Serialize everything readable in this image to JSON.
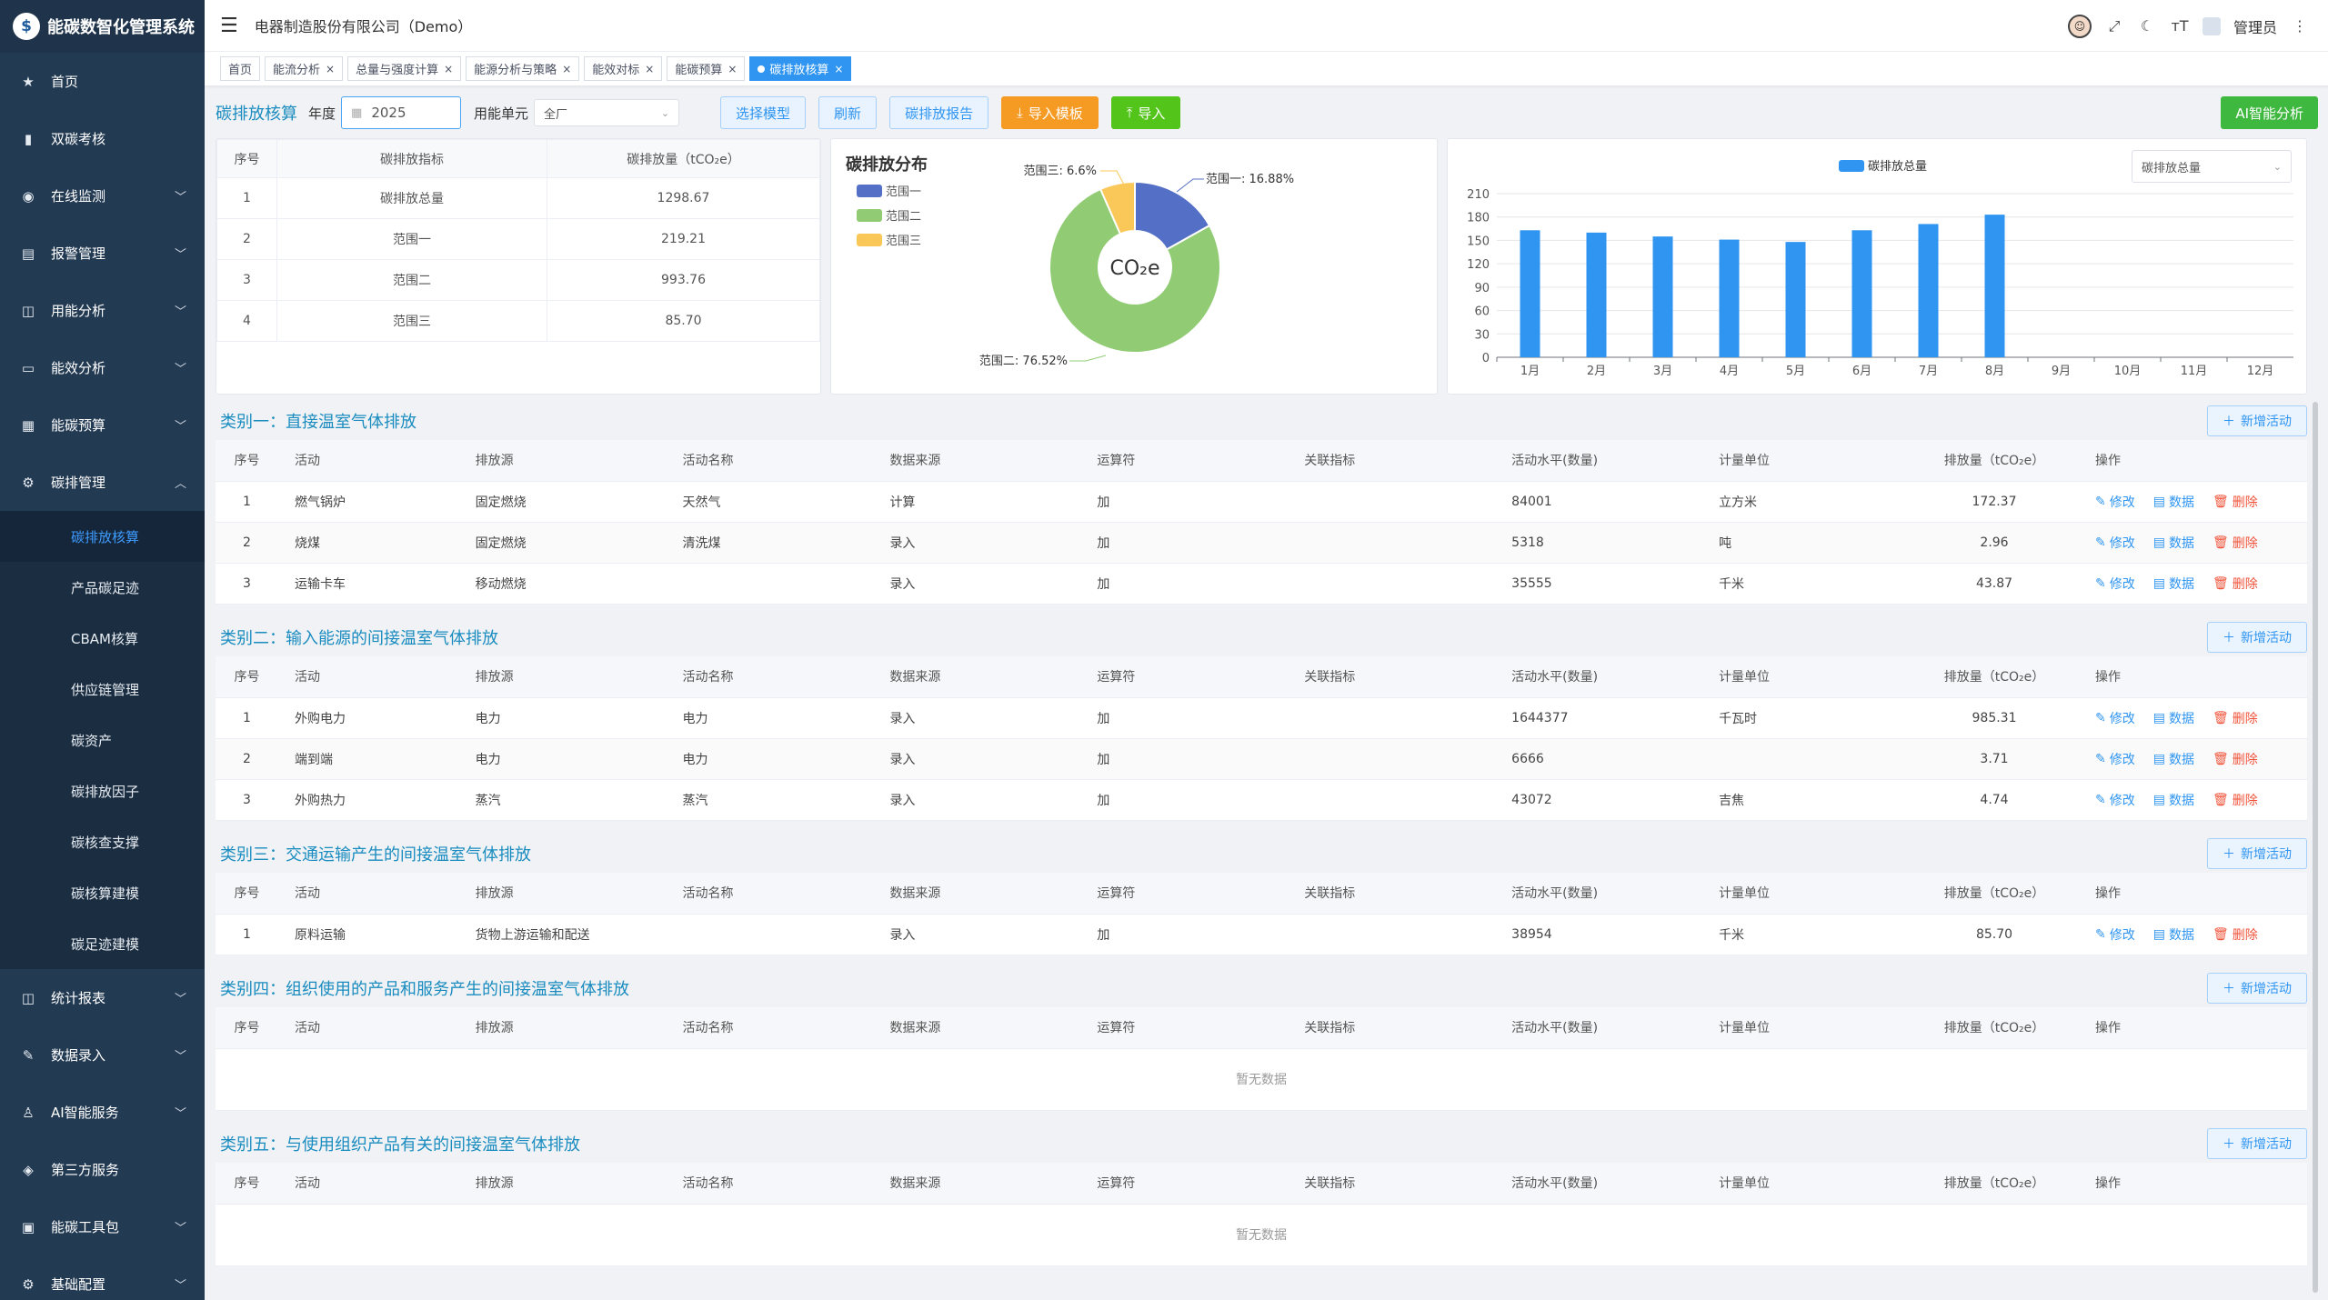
{
  "app": {
    "logo_text": "能碳数智化管理系统",
    "logo_mark": "$"
  },
  "header": {
    "company": "电器制造股份有限公司（Demo）",
    "user": "管理员"
  },
  "sidebar": {
    "items": [
      {
        "label": "首页",
        "icon": "★",
        "has_arrow": false
      },
      {
        "label": "双碳考核",
        "icon": "▮",
        "has_arrow": false
      },
      {
        "label": "在线监测",
        "icon": "◉",
        "has_arrow": true
      },
      {
        "label": "报警管理",
        "icon": "▤",
        "has_arrow": true
      },
      {
        "label": "用能分析",
        "icon": "◫",
        "has_arrow": true
      },
      {
        "label": "能效分析",
        "icon": "▭",
        "has_arrow": true
      },
      {
        "label": "能碳预算",
        "icon": "▦",
        "has_arrow": true
      },
      {
        "label": "碳排管理",
        "icon": "⚙",
        "has_arrow": true,
        "expanded": true
      }
    ],
    "sub_items": [
      "碳排放核算",
      "产品碳足迹",
      "CBAM核算",
      "供应链管理",
      "碳资产",
      "碳排放因子",
      "碳核查支撑",
      "碳核算建模",
      "碳足迹建模"
    ],
    "items_after": [
      {
        "label": "统计报表",
        "icon": "◫",
        "has_arrow": true
      },
      {
        "label": "数据录入",
        "icon": "✎",
        "has_arrow": true
      },
      {
        "label": "AI智能服务",
        "icon": "♙",
        "has_arrow": true
      },
      {
        "label": "第三方服务",
        "icon": "◈",
        "has_arrow": false
      },
      {
        "label": "能碳工具包",
        "icon": "▣",
        "has_arrow": true
      },
      {
        "label": "基础配置",
        "icon": "⚙",
        "has_arrow": true
      }
    ]
  },
  "tags": [
    {
      "label": "首页",
      "closable": false,
      "active": false
    },
    {
      "label": "能流分析",
      "closable": true,
      "active": false
    },
    {
      "label": "总量与强度计算",
      "closable": true,
      "active": false
    },
    {
      "label": "能源分析与策略",
      "closable": true,
      "active": false
    },
    {
      "label": "能效对标",
      "closable": true,
      "active": false
    },
    {
      "label": "能碳预算",
      "closable": true,
      "active": false
    },
    {
      "label": "碳排放核算",
      "closable": true,
      "active": true
    }
  ],
  "toolbar": {
    "title": "碳排放核算",
    "year_label": "年度",
    "year_value": "2025",
    "unit_label": "用能单元",
    "unit_value": "全厂",
    "btn_select_model": "选择模型",
    "btn_refresh": "刷新",
    "btn_report": "碳排放报告",
    "btn_import_template": "导入模板",
    "btn_import": "导入",
    "btn_ai": "AI智能分析"
  },
  "summary": {
    "headers": [
      "序号",
      "碳排放指标",
      "碳排放量（tCO₂e）"
    ],
    "rows": [
      [
        "1",
        "碳排放总量",
        "1298.67"
      ],
      [
        "2",
        "范围一",
        "219.21"
      ],
      [
        "3",
        "范围二",
        "993.76"
      ],
      [
        "4",
        "范围三",
        "85.70"
      ]
    ]
  },
  "pie": {
    "title": "碳排放分布",
    "center_text": "CO₂e",
    "labels": {
      "scope1": "范围一: 16.88%",
      "scope2": "范围二: 76.52%",
      "scope3": "范围三: 6.6%"
    }
  },
  "bar_panel": {
    "select_value": "碳排放总量"
  },
  "chart_data": [
    {
      "type": "pie",
      "title": "碳排放分布",
      "categories": [
        "范围一",
        "范围二",
        "范围三"
      ],
      "values": [
        16.88,
        76.52,
        6.6
      ],
      "colors": [
        "#5470c6",
        "#91cc75",
        "#fac858"
      ],
      "legend": "top-left",
      "donut": true
    },
    {
      "type": "bar",
      "categories": [
        "1月",
        "2月",
        "3月",
        "4月",
        "5月",
        "6月",
        "7月",
        "8月",
        "9月",
        "10月",
        "11月",
        "12月"
      ],
      "series": [
        {
          "name": "碳排放总量",
          "values": [
            163,
            160,
            155,
            151,
            148,
            163,
            171,
            183,
            null,
            null,
            null,
            null
          ],
          "color": "#2f95f0"
        }
      ],
      "ylim": [
        0,
        210
      ],
      "yticks": [
        0,
        30,
        60,
        90,
        120,
        150,
        180,
        210
      ],
      "legend": "top",
      "grid": true
    }
  ],
  "table_headers": [
    "序号",
    "活动",
    "排放源",
    "活动名称",
    "数据来源",
    "运算符",
    "关联指标",
    "活动水平(数量)",
    "计量单位",
    "排放量（tCO₂e）",
    "操作"
  ],
  "ops": {
    "edit": "修改",
    "data": "数据",
    "delete": "删除"
  },
  "add_label": "新增活动",
  "empty_text": "暂无数据",
  "categories": [
    {
      "title": "类别一：直接温室气体排放",
      "rows": [
        [
          "1",
          "燃气锅炉",
          "固定燃烧",
          "天然气",
          "计算",
          "加",
          "",
          "84001",
          "立方米",
          "172.37"
        ],
        [
          "2",
          "烧煤",
          "固定燃烧",
          "清洗煤",
          "录入",
          "加",
          "",
          "5318",
          "吨",
          "2.96"
        ],
        [
          "3",
          "运输卡车",
          "移动燃烧",
          "",
          "录入",
          "加",
          "",
          "35555",
          "千米",
          "43.87"
        ]
      ]
    },
    {
      "title": "类别二：输入能源的间接温室气体排放",
      "rows": [
        [
          "1",
          "外购电力",
          "电力",
          "电力",
          "录入",
          "加",
          "",
          "1644377",
          "千瓦时",
          "985.31"
        ],
        [
          "2",
          "端到端",
          "电力",
          "电力",
          "录入",
          "加",
          "",
          "6666",
          "",
          "3.71"
        ],
        [
          "3",
          "外购热力",
          "蒸汽",
          "蒸汽",
          "录入",
          "加",
          "",
          "43072",
          "吉焦",
          "4.74"
        ]
      ]
    },
    {
      "title": "类别三：交通运输产生的间接温室气体排放",
      "rows": [
        [
          "1",
          "原料运输",
          "货物上游运输和配送",
          "",
          "录入",
          "加",
          "",
          "38954",
          "千米",
          "85.70"
        ]
      ]
    },
    {
      "title": "类别四：组织使用的产品和服务产生的间接温室气体排放",
      "rows": []
    },
    {
      "title": "类别五：与使用组织产品有关的间接温室气体排放",
      "rows": []
    }
  ]
}
